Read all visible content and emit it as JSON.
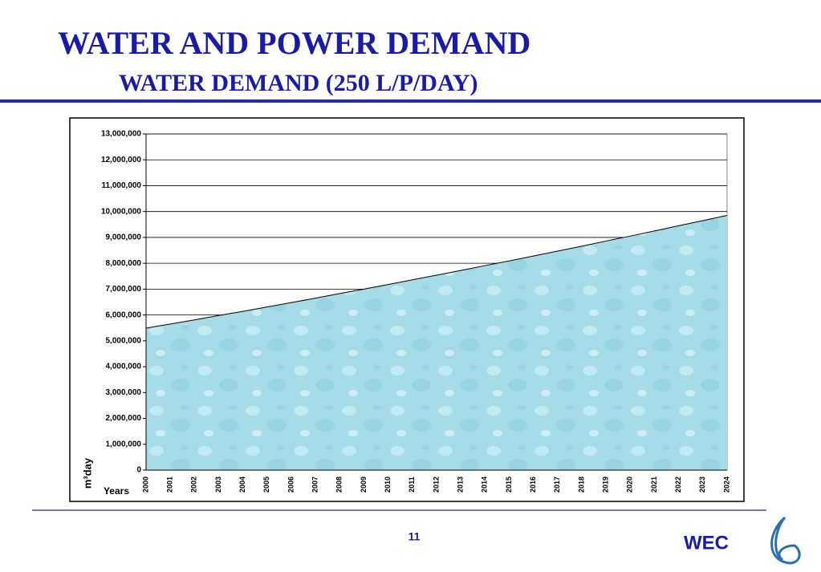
{
  "title": "WATER AND POWER DEMAND",
  "page_number": "11",
  "logo": "WEC",
  "chart_data": {
    "type": "area",
    "title": "WATER DEMAND (250 L/P/DAY)",
    "x_label": "Years",
    "y_label": "m³day",
    "categories": [
      "2000",
      "2001",
      "2002",
      "2003",
      "2004",
      "2005",
      "2006",
      "2007",
      "2008",
      "2009",
      "2010",
      "2011",
      "2012",
      "2013",
      "2014",
      "2015",
      "2016",
      "2017",
      "2018",
      "2019",
      "2020",
      "2021",
      "2022",
      "2023",
      "2024"
    ],
    "values": [
      5490000,
      5650000,
      5810000,
      5980000,
      6140000,
      6310000,
      6480000,
      6650000,
      6830000,
      7000000,
      7180000,
      7360000,
      7540000,
      7720000,
      7910000,
      8090000,
      8280000,
      8470000,
      8660000,
      8860000,
      9050000,
      9250000,
      9450000,
      9650000,
      9850000
    ],
    "color": "#a8dbe8",
    "ylim": [
      0,
      13000000
    ],
    "yticks": [
      0,
      {
        "value": 1000000,
        "label": "1,000,000"
      },
      {
        "value": 2000000,
        "label": "2,000,000"
      },
      {
        "value": 3000000,
        "label": "3,000,000"
      },
      {
        "value": 4000000,
        "label": "4,000,000"
      },
      {
        "value": 5000000,
        "label": "5,000,000"
      },
      {
        "value": 6000000,
        "label": "6,000,000"
      },
      {
        "value": 7000000,
        "label": "7,000,000"
      },
      {
        "value": 8000000,
        "label": "8,000,000"
      },
      {
        "value": 9000000,
        "label": "9,000,000"
      },
      {
        "value": 10000000,
        "label": "10,000,000"
      },
      {
        "value": 11000000,
        "label": "11,000,000"
      },
      {
        "value": 12000000,
        "label": "12,000,000"
      },
      {
        "value": 13000000,
        "label": "13,000,000"
      }
    ],
    "grid": true
  }
}
